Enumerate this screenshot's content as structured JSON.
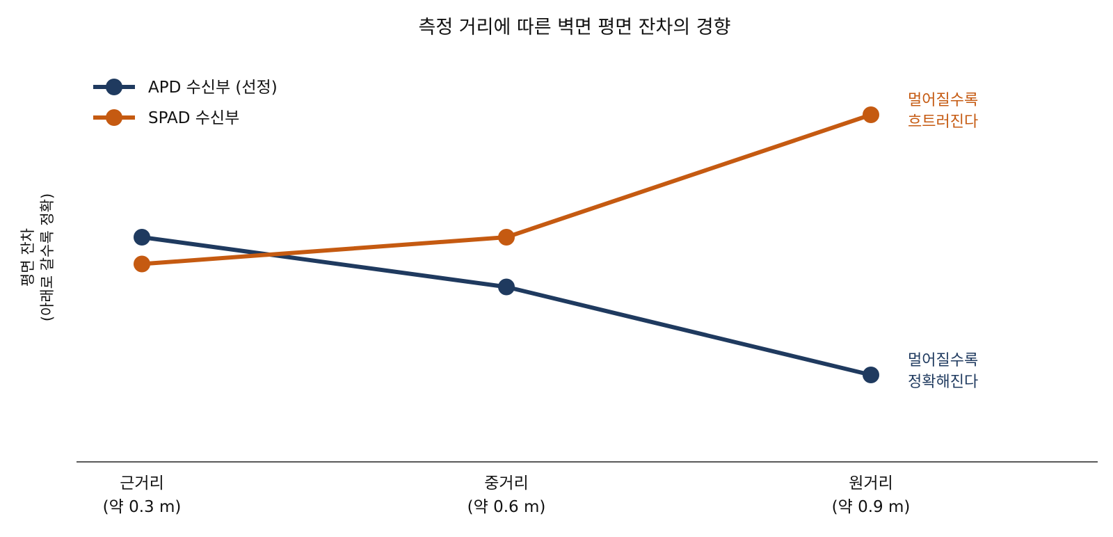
{
  "chart_data": {
    "type": "line",
    "title": "측정 거리에 따른 벽면 평면 잔차의 경향",
    "ylabel": "평면 잔차",
    "ylabel_note": "(아래로 갈수록 정확)",
    "categories": [
      {
        "label": "근거리",
        "sub": "(약 0.3 m)"
      },
      {
        "label": "중거리",
        "sub": "(약 0.6 m)"
      },
      {
        "label": "원거리",
        "sub": "(약 0.9 m)"
      }
    ],
    "ylim": [
      0,
      10
    ],
    "y_ticks_shown": false,
    "grid": false,
    "legend_position": "top-left",
    "series": [
      {
        "name": "APD 수신부 (선정)",
        "color": "#1f3a5f",
        "values": [
          5.8,
          4.5,
          2.2
        ],
        "annotation": [
          "멀어질수록",
          "정확해진다"
        ]
      },
      {
        "name": "SPAD 수신부",
        "color": "#c55a11",
        "values": [
          5.1,
          5.8,
          9.0
        ],
        "annotation": [
          "멀어질수록",
          "흐트러진다"
        ]
      }
    ]
  }
}
